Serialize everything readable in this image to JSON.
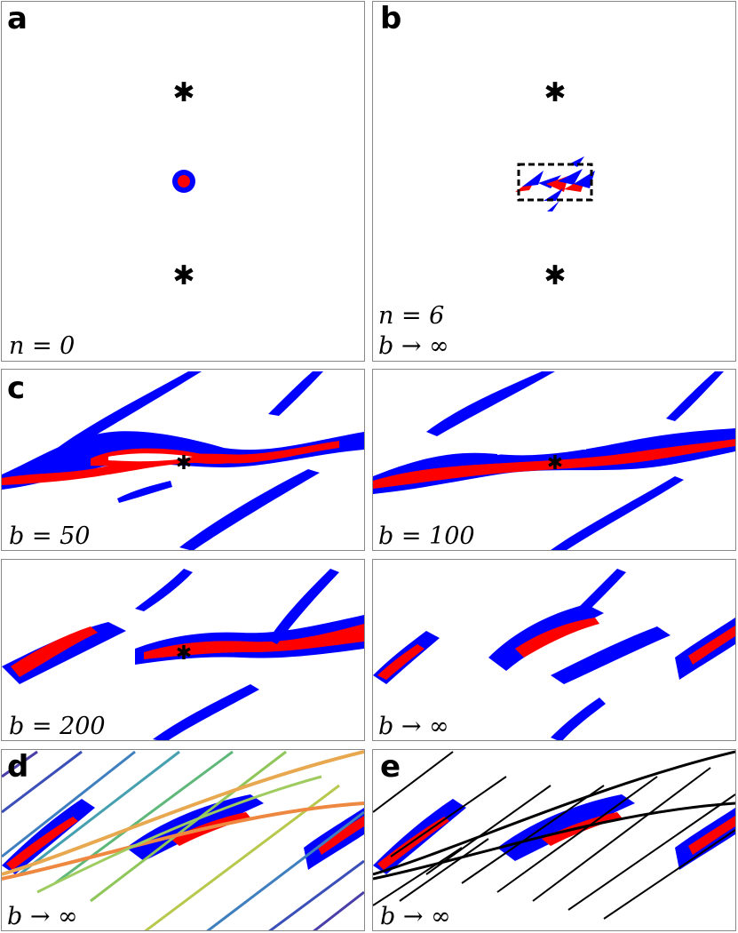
{
  "colors": {
    "red": "#ff0000",
    "blue": "#0000ff",
    "frame": "#888888"
  },
  "panels": {
    "a": {
      "label": "a",
      "caption": "n = 0"
    },
    "b": {
      "label": "b",
      "caption_n": "n = 6",
      "caption_b": "b → ∞"
    },
    "c": {
      "label": "c",
      "c1": "b = 50",
      "c2": "b = 100",
      "c3": "b = 200",
      "c4": "b → ∞"
    },
    "d": {
      "label": "d",
      "caption": "b → ∞"
    },
    "e": {
      "label": "e",
      "caption": "b → ∞"
    }
  },
  "markers": {
    "star": "✱"
  }
}
